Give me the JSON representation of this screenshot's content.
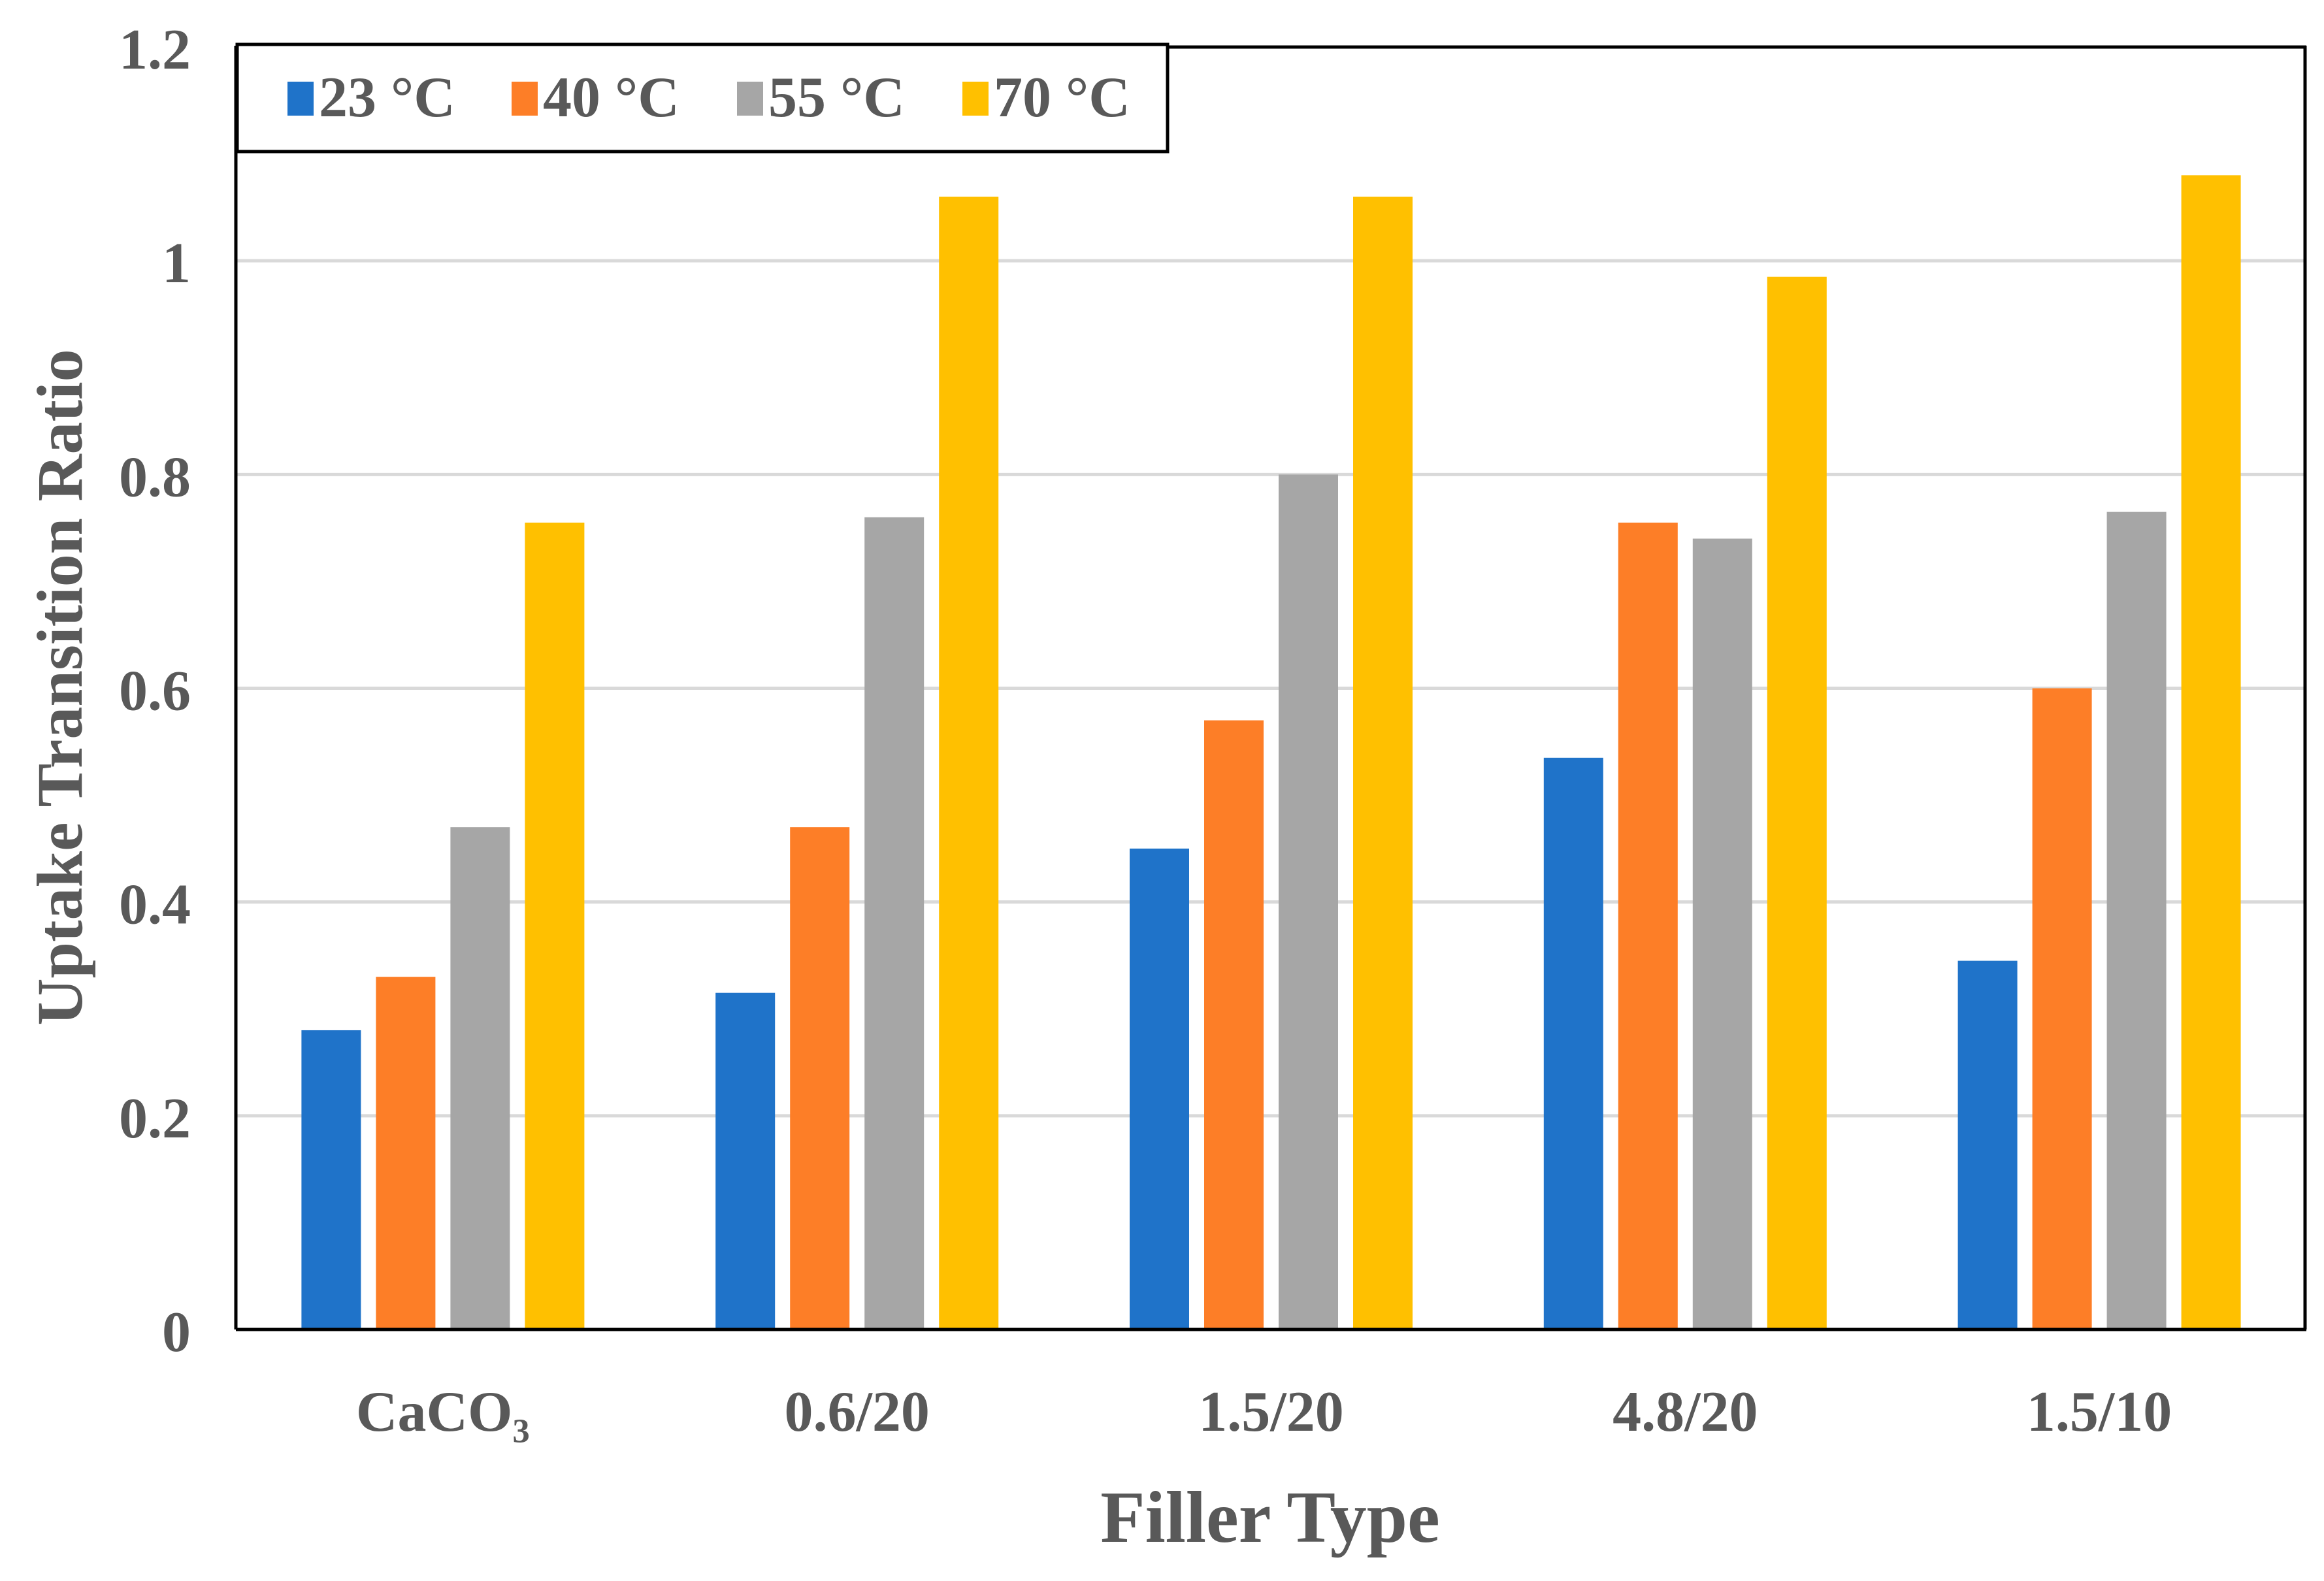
{
  "chart_data": {
    "type": "bar",
    "title": "",
    "xlabel": "Filler Type",
    "ylabel": "Uptake Transition Ratio",
    "ylim": [
      0,
      1.2
    ],
    "yticks": [
      "0",
      "0.2",
      "0.4",
      "0.6",
      "0.8",
      "1",
      "1.2"
    ],
    "categories": [
      "CaCO₃",
      "0.6/20",
      "1.5/20",
      "4.8/20",
      "1.5/10"
    ],
    "series": [
      {
        "name": "23 °C",
        "color": "#1F73C9",
        "values": [
          0.28,
          0.315,
          0.45,
          0.535,
          0.345
        ]
      },
      {
        "name": "40 °C",
        "color": "#FD7E27",
        "values": [
          0.33,
          0.47,
          0.57,
          0.755,
          0.6
        ]
      },
      {
        "name": "55 °C",
        "color": "#A6A6A6",
        "values": [
          0.47,
          0.76,
          0.8,
          0.74,
          0.765
        ]
      },
      {
        "name": "70 °C",
        "color": "#FFC000",
        "values": [
          0.755,
          1.06,
          1.06,
          0.985,
          1.08
        ]
      }
    ],
    "gridlines": true,
    "legend_position": "top-left"
  }
}
